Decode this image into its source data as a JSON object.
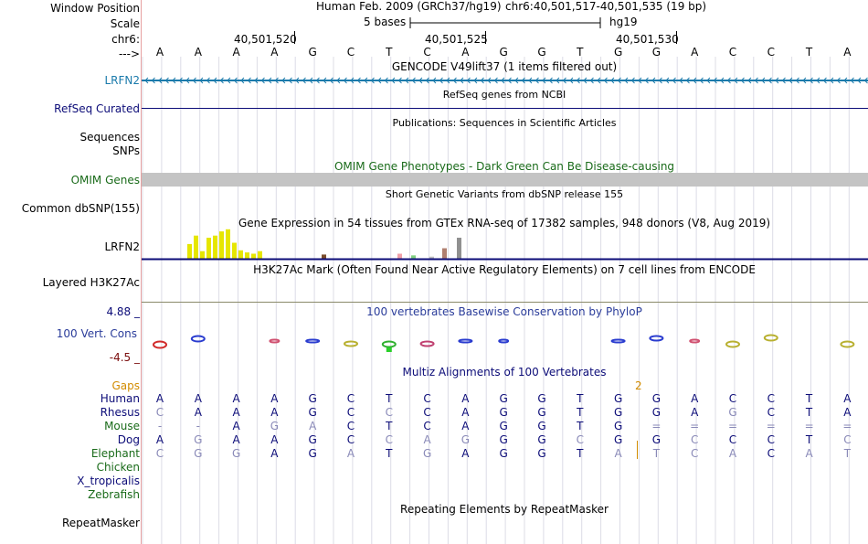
{
  "header": {
    "window_position_label": "Window Position",
    "assembly": "Human Feb. 2009 (GRCh37/hg19)",
    "position": "chr6:40,501,517-40,501,535 (19 bp)",
    "scale_label": "Scale",
    "scale_text": "5 bases",
    "db": "hg19",
    "chrom_label": "chr6:",
    "coords": [
      "40,501,520",
      "40,501,525",
      "40,501,530"
    ],
    "strand_label": "--->"
  },
  "bases": [
    "A",
    "A",
    "A",
    "A",
    "G",
    "C",
    "T",
    "C",
    "A",
    "G",
    "G",
    "T",
    "G",
    "G",
    "A",
    "C",
    "C",
    "T",
    "A"
  ],
  "tracks": {
    "gencode": {
      "title": "GENCODE V49lift37 (1 items filtered out)",
      "gene": "LRFN2",
      "color": "#1a7aab"
    },
    "refseq": {
      "title": "RefSeq genes from NCBI",
      "label": "RefSeq Curated",
      "color": "#0c0c78"
    },
    "publications": {
      "title": "Publications: Sequences in Scientific Articles",
      "label1": "Sequences",
      "label2": "SNPs"
    },
    "omim": {
      "title": "OMIM Gene Phenotypes - Dark Green Can Be Disease-causing",
      "label": "OMIM Genes",
      "color": "#1a6b1a"
    },
    "dbsnp": {
      "title": "Short Genetic Variants from dbSNP release 155",
      "label": "Common dbSNP(155)"
    },
    "gtex": {
      "title": "Gene Expression in 54 tissues from GTEx RNA-seq of 17382 samples, 948 donors (V8, Aug 2019)",
      "label": "LRFN2",
      "bars": [
        {
          "v": 0.35,
          "c": "#e6e600"
        },
        {
          "v": 0.55,
          "c": "#e6e600"
        },
        {
          "v": 0.18,
          "c": "#e6e600"
        },
        {
          "v": 0.5,
          "c": "#e6e600"
        },
        {
          "v": 0.55,
          "c": "#e6e600"
        },
        {
          "v": 0.65,
          "c": "#e6e600"
        },
        {
          "v": 0.7,
          "c": "#e6e600"
        },
        {
          "v": 0.38,
          "c": "#e6e600"
        },
        {
          "v": 0.2,
          "c": "#e6e600"
        },
        {
          "v": 0.15,
          "c": "#e6e600"
        },
        {
          "v": 0.12,
          "c": "#e6e600"
        },
        {
          "v": 0.18,
          "c": "#e6e600"
        },
        {
          "v": 0.1,
          "c": "#7a4c2a"
        },
        {
          "v": 0.12,
          "c": "#f0a0a8"
        },
        {
          "v": 0.08,
          "c": "#80d080"
        },
        {
          "v": 0.05,
          "c": "#c0c0c0"
        },
        {
          "v": 0.25,
          "c": "#b08070"
        },
        {
          "v": 0.5,
          "c": "#909090"
        }
      ]
    },
    "h3k27ac": {
      "title": "H3K27Ac Mark (Often Found Near Active Regulatory Elements) on 7 cell lines from ENCODE",
      "label": "Layered H3K27Ac"
    },
    "phylop": {
      "title": "100 vertebrates Basewise Conservation by PhyloP",
      "label": "100 Vert. Cons",
      "max": "4.88 _",
      "min": "-4.5 _"
    },
    "multiz": {
      "title": "Multiz Alignments of 100 Vertebrates",
      "gaps_label": "Gaps",
      "gap_mark": "2"
    },
    "repeatmasker": {
      "title": "Repeating Elements by RepeatMasker",
      "label": "RepeatMasker"
    }
  },
  "species": [
    {
      "name": "Human",
      "color": "#0c0c78",
      "seq": [
        "A",
        "A",
        "A",
        "A",
        "G",
        "C",
        "T",
        "C",
        "A",
        "G",
        "G",
        "T",
        "G",
        "G",
        "A",
        "C",
        "C",
        "T",
        "A"
      ]
    },
    {
      "name": "Rhesus",
      "color": "#0c0c78",
      "seq": [
        "C",
        "A",
        "A",
        "A",
        "G",
        "C",
        "C",
        "C",
        "A",
        "G",
        "G",
        "T",
        "G",
        "G",
        "A",
        "G",
        "C",
        "T",
        "A"
      ]
    },
    {
      "name": "Mouse",
      "color": "#1a6b1a",
      "seq": [
        "-",
        "-",
        "A",
        "G",
        "A",
        "C",
        "T",
        "C",
        "A",
        "G",
        "G",
        "T",
        "G",
        "=",
        "=",
        "=",
        "=",
        "=",
        "="
      ]
    },
    {
      "name": "Dog",
      "color": "#0c0c78",
      "seq": [
        "A",
        "G",
        "A",
        "A",
        "G",
        "C",
        "C",
        "A",
        "G",
        "G",
        "G",
        "C",
        "G",
        "G",
        "C",
        "C",
        "C",
        "T",
        "C"
      ]
    },
    {
      "name": "Elephant",
      "color": "#1a6b1a",
      "seq": [
        "C",
        "G",
        "G",
        "A",
        "G",
        "A",
        "T",
        "G",
        "A",
        "G",
        "G",
        "T",
        "A",
        "T",
        "C",
        "A",
        "C",
        "A",
        "T"
      ]
    },
    {
      "name": "Chicken",
      "color": "#1a6b1a",
      "seq": []
    },
    {
      "name": "X_tropicalis",
      "color": "#0c0c78",
      "seq": []
    },
    {
      "name": "Zebrafish",
      "color": "#1a6b1a",
      "seq": []
    }
  ],
  "colors": {
    "grid": "#dcdce6",
    "axis_red": "#7a0c0c",
    "gaps": "#d28c00"
  }
}
